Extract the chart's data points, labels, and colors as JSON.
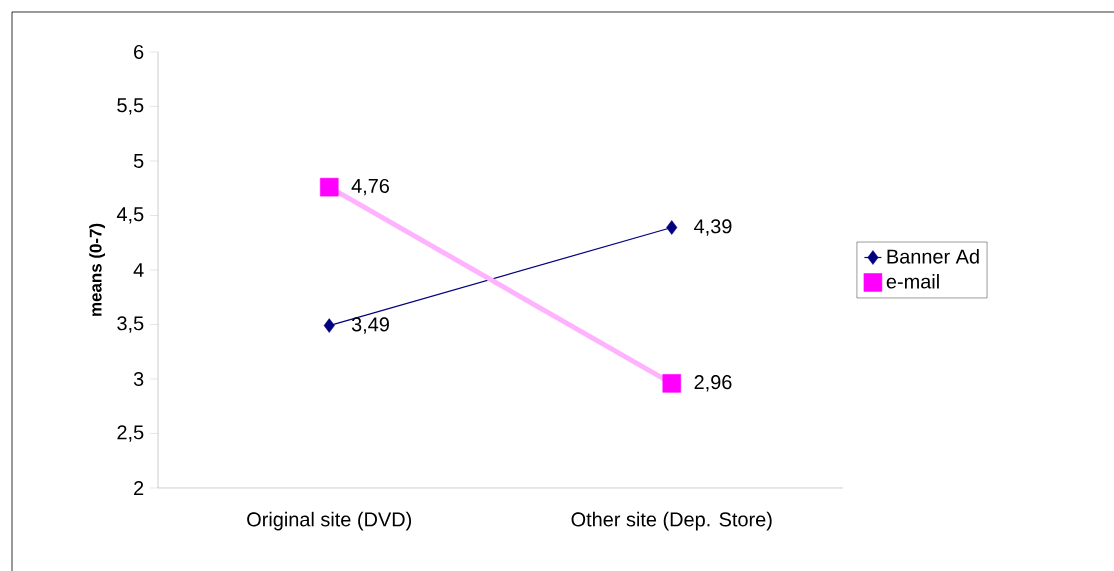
{
  "chart_data": {
    "type": "line",
    "ylabel": "means (0-7)",
    "categories": [
      "Original site (DVD)",
      "Other site (Dep. Store)"
    ],
    "series": [
      {
        "name": "Banner Ad",
        "color": "#000080",
        "marker": "diamond",
        "values": [
          3.49,
          4.39
        ],
        "value_labels": [
          "3,49",
          "4,39"
        ]
      },
      {
        "name": "e-mail",
        "color": "#ffb3ff",
        "colors": [
          "#ff00ff",
          "#ff00ff"
        ],
        "marker": "square",
        "values": [
          4.76,
          2.96
        ],
        "value_labels": [
          "4,76",
          "2,96"
        ]
      }
    ],
    "ylim": [
      2,
      6
    ],
    "yticks": [
      2,
      {
        "value": 2.5,
        "label": "2,5"
      },
      3,
      {
        "value": 3.5,
        "label": "3,5"
      },
      4,
      {
        "value": 4.5,
        "label": "4,5"
      },
      5,
      {
        "value": 5.5,
        "label": "5,5"
      },
      6
    ],
    "grid": false,
    "legend": "right"
  }
}
